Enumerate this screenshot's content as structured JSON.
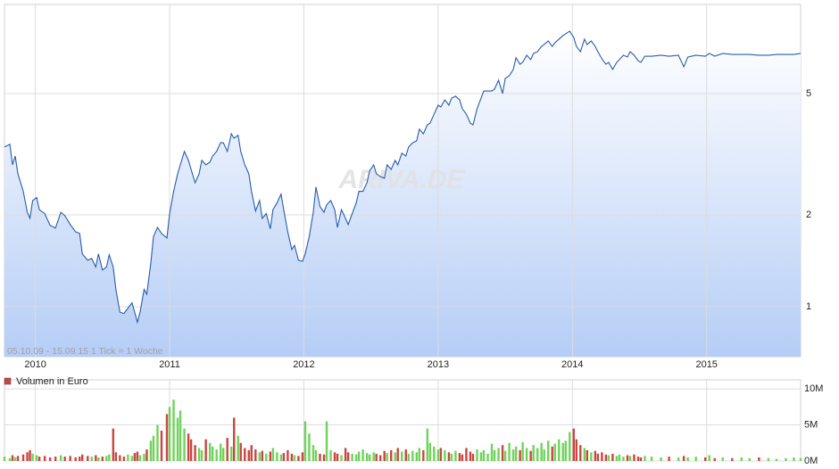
{
  "chart_data": {
    "type": "line",
    "annotation": "05.10.09 - 15.09.15   1 Tick = 1 Woche",
    "watermark": "ARIVA.DE",
    "log_y": true,
    "grid": true,
    "legend": "top-left",
    "xlim": [
      2009.77,
      2015.7
    ],
    "xticks": [
      2010,
      2011,
      2012,
      2013,
      2014,
      2015
    ],
    "ylim": [
      0.686,
      9.8
    ],
    "yticks": [
      1,
      2,
      5
    ],
    "y2lim": [
      0,
      11
    ],
    "y2ticks": [
      {
        "value": 10,
        "label": "10M"
      },
      {
        "value": 5,
        "label": "5M"
      },
      {
        "value": 0,
        "label": "0M"
      }
    ],
    "x": [
      2009.77,
      2009.81,
      2009.83,
      2009.85,
      2009.87,
      2009.91,
      2009.94,
      2009.96,
      2009.98,
      2010.01,
      2010.03,
      2010.07,
      2010.11,
      2010.15,
      2010.19,
      2010.22,
      2010.26,
      2010.3,
      2010.33,
      2010.35,
      2010.39,
      2010.42,
      2010.45,
      2010.47,
      2010.5,
      2010.53,
      2010.55,
      2010.58,
      2010.6,
      2010.63,
      2010.66,
      2010.69,
      2010.72,
      2010.74,
      2010.76,
      2010.78,
      2010.81,
      2010.83,
      2010.86,
      2010.88,
      2010.91,
      2010.94,
      2010.98,
      2011.0,
      2011.03,
      2011.06,
      2011.08,
      2011.11,
      2011.14,
      2011.16,
      2011.19,
      2011.22,
      2011.24,
      2011.27,
      2011.3,
      2011.32,
      2011.35,
      2011.38,
      2011.4,
      2011.43,
      2011.46,
      2011.48,
      2011.51,
      2011.53,
      2011.56,
      2011.59,
      2011.61,
      2011.64,
      2011.67,
      2011.69,
      2011.72,
      2011.75,
      2011.77,
      2011.8,
      2011.83,
      2011.85,
      2011.88,
      2011.91,
      2011.93,
      2011.96,
      2011.99,
      2012.01,
      2012.04,
      2012.07,
      2012.09,
      2012.12,
      2012.15,
      2012.17,
      2012.2,
      2012.23,
      2012.25,
      2012.28,
      2012.31,
      2012.33,
      2012.36,
      2012.39,
      2012.41,
      2012.44,
      2012.47,
      2012.49,
      2012.52,
      2012.54,
      2012.57,
      2012.6,
      2012.62,
      2012.65,
      2012.68,
      2012.7,
      2012.73,
      2012.76,
      2012.78,
      2012.81,
      2012.84,
      2012.86,
      2012.89,
      2012.92,
      2012.94,
      2012.97,
      2013.0,
      2013.02,
      2013.05,
      2013.08,
      2013.1,
      2013.13,
      2013.16,
      2013.18,
      2013.21,
      2013.24,
      2013.26,
      2013.29,
      2013.32,
      2013.34,
      2013.37,
      2013.4,
      2013.42,
      2013.45,
      2013.48,
      2013.5,
      2013.53,
      2013.56,
      2013.58,
      2013.61,
      2013.63,
      2013.66,
      2013.69,
      2013.71,
      2013.74,
      2013.77,
      2013.79,
      2013.82,
      2013.85,
      2013.87,
      2013.9,
      2013.93,
      2013.95,
      2013.98,
      2014.01,
      2014.03,
      2014.06,
      2014.09,
      2014.11,
      2014.14,
      2014.17,
      2014.19,
      2014.22,
      2014.25,
      2014.27,
      2014.3,
      2014.33,
      2014.35,
      2014.38,
      2014.41,
      2014.43,
      2014.46,
      2014.49,
      2014.51,
      2014.54,
      2014.59,
      2014.66,
      2014.72,
      2014.79,
      2014.83,
      2014.86,
      2014.92,
      2014.99,
      2015.02,
      2015.06,
      2015.12,
      2015.19,
      2015.26,
      2015.32,
      2015.39,
      2015.46,
      2015.52,
      2015.59,
      2015.65,
      2015.7
    ],
    "series": [
      {
        "color": "#2a5caa",
        "fill": "#b5cdf6",
        "values": [
          3.34,
          3.41,
          2.92,
          3.12,
          2.73,
          2.39,
          2.04,
          1.95,
          2.23,
          2.28,
          2.08,
          2.02,
          1.85,
          1.81,
          2.04,
          1.99,
          1.86,
          1.76,
          1.74,
          1.49,
          1.42,
          1.44,
          1.35,
          1.49,
          1.32,
          1.35,
          1.48,
          1.35,
          1.14,
          0.96,
          0.95,
          0.99,
          1.03,
          0.96,
          0.89,
          0.96,
          1.14,
          1.1,
          1.39,
          1.7,
          1.82,
          1.74,
          1.68,
          2.02,
          2.39,
          2.73,
          2.92,
          3.23,
          3.02,
          2.82,
          2.55,
          2.73,
          3.02,
          2.92,
          2.98,
          3.12,
          3.23,
          3.45,
          3.45,
          3.23,
          3.69,
          3.57,
          3.65,
          3.23,
          2.92,
          2.73,
          2.39,
          2.06,
          2.23,
          1.95,
          2.02,
          1.8,
          2.08,
          2.19,
          2.34,
          2.08,
          1.76,
          1.54,
          1.59,
          1.42,
          1.41,
          1.49,
          1.7,
          2.04,
          2.47,
          2.13,
          2.04,
          2.16,
          2.23,
          2.08,
          1.82,
          2.08,
          1.95,
          1.86,
          2.02,
          2.19,
          2.39,
          2.39,
          2.55,
          2.79,
          2.92,
          2.73,
          2.67,
          2.64,
          2.92,
          2.82,
          3.02,
          2.92,
          3.19,
          3.12,
          3.34,
          3.45,
          3.5,
          3.82,
          3.69,
          3.95,
          4.0,
          4.28,
          4.58,
          4.52,
          4.77,
          4.58,
          4.83,
          4.9,
          4.77,
          4.46,
          4.28,
          4.0,
          3.95,
          4.46,
          4.83,
          5.1,
          5.1,
          5.1,
          5.17,
          5.53,
          5.0,
          5.61,
          5.72,
          6.0,
          6.55,
          6.24,
          6.33,
          6.68,
          6.46,
          6.77,
          6.86,
          7.14,
          7.24,
          7.44,
          7.14,
          7.34,
          7.54,
          7.75,
          7.85,
          8.01,
          7.64,
          7.14,
          6.86,
          7.54,
          7.24,
          7.44,
          7.14,
          6.86,
          6.5,
          6.24,
          6.33,
          6.0,
          6.33,
          6.46,
          6.68,
          6.59,
          6.86,
          6.68,
          6.41,
          6.33,
          6.63,
          6.63,
          6.68,
          6.63,
          6.68,
          6.12,
          6.59,
          6.68,
          6.63,
          6.77,
          6.63,
          6.77,
          6.72,
          6.72,
          6.72,
          6.68,
          6.68,
          6.72,
          6.72,
          6.72,
          6.77
        ]
      },
      {
        "name": "Volumen in Euro",
        "type": "bar",
        "axis": "y2",
        "color": "#c9463f",
        "up_color": "#6fd35a",
        "down_color": "#c9463f",
        "values": [
          0.6,
          0.4,
          0.8,
          0.5,
          0.7,
          0.9,
          1.2,
          1.5,
          1.0,
          0.8,
          0.6,
          0.7,
          0.5,
          0.6,
          0.8,
          0.6,
          0.7,
          0.5,
          0.6,
          0.9,
          0.7,
          0.6,
          0.8,
          0.5,
          0.6,
          0.7,
          0.9,
          4.5,
          1.2,
          0.8,
          0.6,
          0.9,
          0.7,
          1.1,
          1.3,
          0.8,
          1.0,
          1.6,
          2.8,
          3.5,
          5.0,
          4.2,
          6.5,
          7.5,
          8.5,
          6.0,
          7.0,
          4.5,
          3.8,
          3.0,
          2.2,
          1.8,
          1.5,
          3.0,
          2.5,
          2.0,
          1.6,
          2.4,
          1.8,
          3.2,
          2.0,
          6.0,
          3.5,
          2.5,
          1.8,
          1.5,
          2.2,
          1.6,
          1.2,
          1.4,
          1.0,
          1.3,
          1.8,
          1.2,
          0.9,
          1.1,
          1.5,
          1.0,
          0.8,
          0.7,
          1.2,
          5.5,
          3.8,
          2.2,
          1.5,
          1.0,
          0.9,
          5.5,
          1.5,
          1.2,
          1.0,
          0.8,
          1.8,
          1.2,
          1.0,
          0.9,
          1.3,
          1.6,
          1.1,
          0.9,
          1.2,
          1.0,
          0.8,
          1.4,
          1.1,
          1.5,
          1.2,
          1.8,
          1.3,
          1.6,
          1.0,
          1.4,
          1.2,
          1.8,
          1.5,
          4.5,
          2.5,
          2.0,
          1.6,
          1.8,
          1.5,
          1.2,
          1.0,
          1.4,
          1.1,
          0.9,
          1.8,
          1.3,
          1.0,
          1.6,
          1.2,
          1.5,
          1.0,
          2.4,
          1.5,
          1.8,
          2.2,
          1.4,
          2.5,
          1.6,
          2.0,
          1.5,
          2.6,
          1.8,
          1.4,
          2.2,
          1.8,
          2.5,
          1.6,
          2.8,
          2.0,
          2.4,
          3.0,
          2.5,
          2.8,
          4.0,
          4.5,
          3.0,
          2.2,
          1.8,
          1.5,
          1.2,
          1.4,
          1.0,
          1.2,
          0.9,
          0.8,
          1.0,
          0.7,
          0.9,
          0.6,
          0.8,
          0.7,
          0.9,
          0.6,
          0.5,
          0.7,
          0.6,
          0.5,
          0.6,
          0.5,
          0.7,
          0.5,
          0.6,
          0.5,
          0.8,
          0.4,
          0.5,
          0.4,
          0.5,
          0.4,
          0.5,
          0.4,
          0.3,
          0.4,
          0.5,
          0.4
        ]
      }
    ]
  }
}
